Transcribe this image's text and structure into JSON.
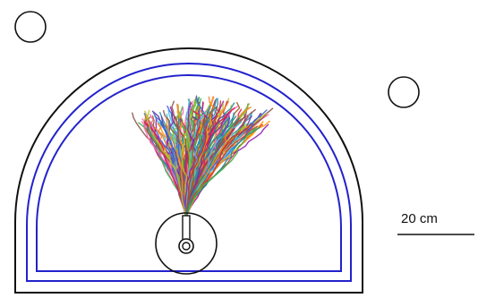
{
  "figure": {
    "scale_bar": {
      "label": "20 cm"
    }
  },
  "colors": {
    "outline": "#111111",
    "inner_wall": "#2222cc",
    "trajectories": [
      "#e6194b",
      "#f58231",
      "#3cb44b",
      "#4363d8",
      "#911eb4",
      "#46c0e6",
      "#9a6324",
      "#bfbf2a",
      "#cc3333",
      "#1f8f8f",
      "#ff69b4",
      "#6a3d9a",
      "#ff9900",
      "#2b8cbe",
      "#8c564b",
      "#7fbf3f"
    ]
  }
}
